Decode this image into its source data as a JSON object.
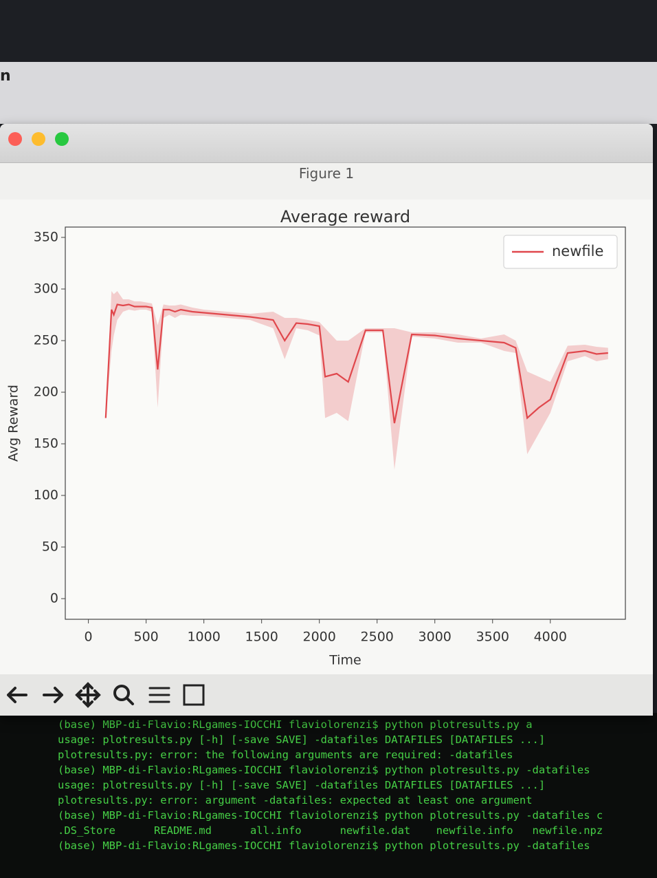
{
  "background_text": "n",
  "window": {
    "title": "Figure 1"
  },
  "chart_data": {
    "type": "line",
    "title": "Average reward",
    "x_label": "Time",
    "y_label": "Avg Reward",
    "x": [
      150,
      200,
      220,
      250,
      300,
      350,
      400,
      450,
      500,
      550,
      600,
      650,
      700,
      750,
      800,
      900,
      1000,
      1200,
      1400,
      1600,
      1700,
      1800,
      1900,
      2000,
      2050,
      2150,
      2250,
      2400,
      2550,
      2650,
      2800,
      3000,
      3200,
      3400,
      3600,
      3700,
      3800,
      3900,
      4000,
      4150,
      4300,
      4400,
      4500
    ],
    "series": [
      {
        "name": "newfile",
        "color": "#e0474c",
        "values": [
          175,
          280,
          275,
          285,
          284,
          285,
          283,
          283,
          283,
          282,
          222,
          280,
          280,
          278,
          280,
          278,
          277,
          275,
          273,
          270,
          250,
          267,
          266,
          264,
          215,
          218,
          210,
          260,
          260,
          170,
          256,
          255,
          252,
          250,
          248,
          243,
          175,
          185,
          193,
          238,
          240,
          237,
          238
        ],
        "lower": [
          175,
          240,
          255,
          270,
          278,
          280,
          279,
          280,
          280,
          278,
          185,
          272,
          275,
          272,
          275,
          274,
          274,
          272,
          270,
          262,
          232,
          262,
          260,
          255,
          175,
          180,
          172,
          258,
          258,
          125,
          254,
          252,
          248,
          248,
          240,
          238,
          140,
          160,
          180,
          230,
          235,
          230,
          232
        ],
        "upper": [
          175,
          298,
          295,
          298,
          290,
          290,
          288,
          288,
          287,
          286,
          265,
          285,
          284,
          284,
          285,
          282,
          280,
          278,
          276,
          278,
          272,
          272,
          270,
          268,
          262,
          250,
          250,
          262,
          262,
          262,
          258,
          258,
          256,
          252,
          256,
          250,
          220,
          215,
          210,
          245,
          246,
          244,
          243
        ]
      }
    ],
    "xlim": [
      -200,
      4650
    ],
    "ylim": [
      -20,
      360
    ],
    "xticks": [
      0,
      500,
      1000,
      1500,
      2000,
      2500,
      3000,
      3500,
      4000
    ],
    "yticks": [
      0,
      50,
      100,
      150,
      200,
      250,
      300,
      350
    ],
    "legend": "upper right",
    "grid": false
  },
  "terminal": {
    "lines": [
      "(base) MBP-di-Flavio:RLgames-IOCCHI flaviolorenzi$ python plotresults.py a",
      "usage: plotresults.py [-h] [-save SAVE] -datafiles DATAFILES [DATAFILES ...]",
      "plotresults.py: error: the following arguments are required: -datafiles",
      "(base) MBP-di-Flavio:RLgames-IOCCHI flaviolorenzi$ python plotresults.py -datafiles",
      "usage: plotresults.py [-h] [-save SAVE] -datafiles DATAFILES [DATAFILES ...]",
      "plotresults.py: error: argument -datafiles: expected at least one argument",
      "(base) MBP-di-Flavio:RLgames-IOCCHI flaviolorenzi$ python plotresults.py -datafiles c",
      ".DS_Store      README.md      all.info      newfile.dat    newfile.info   newfile.npz",
      "(base) MBP-di-Flavio:RLgames-IOCCHI flaviolorenzi$ python plotresults.py -datafiles"
    ]
  }
}
